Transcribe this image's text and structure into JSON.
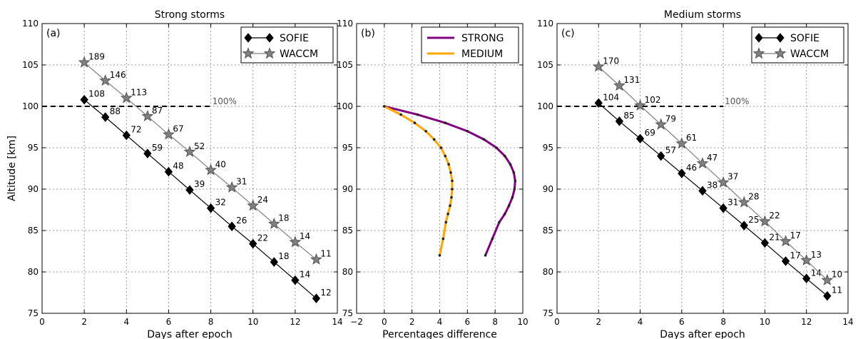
{
  "chart_data": [
    {
      "type": "line",
      "panel": "(a)",
      "title": "Strong storms",
      "xlabel": "Days after epoch",
      "ylabel": "Altitude [km]",
      "xlim": [
        0,
        14
      ],
      "ylim": [
        75,
        110
      ],
      "xticks": [
        "0",
        "2",
        "4",
        "6",
        "8",
        "10",
        "12",
        "14"
      ],
      "yticks": [
        "75",
        "80",
        "85",
        "90",
        "95",
        "100",
        "105",
        "110"
      ],
      "grid": true,
      "legend_position": "top-right",
      "reference_line": {
        "y": 100,
        "x_range": [
          0,
          8
        ],
        "label": "100%"
      },
      "series": [
        {
          "name": "SOFIE",
          "color": "#000000",
          "marker": "diamond",
          "x": [
            2,
            3,
            4,
            5,
            6,
            7,
            8,
            9,
            10,
            11,
            12,
            13
          ],
          "y": [
            100.8,
            98.7,
            96.5,
            94.3,
            92.1,
            89.9,
            87.7,
            85.5,
            83.4,
            81.2,
            79.0,
            76.8
          ],
          "labels": [
            "108",
            "88",
            "72",
            "59",
            "48",
            "39",
            "32",
            "26",
            "22",
            "18",
            "14",
            "12"
          ]
        },
        {
          "name": "WACCM",
          "color": "#808080",
          "marker": "star",
          "x": [
            2,
            3,
            4,
            5,
            6,
            7,
            8,
            9,
            10,
            11,
            12,
            13
          ],
          "y": [
            105.3,
            103.1,
            101.0,
            98.8,
            96.6,
            94.5,
            92.3,
            90.2,
            88.0,
            85.8,
            83.6,
            81.5
          ],
          "labels": [
            "189",
            "146",
            "113",
            "87",
            "67",
            "52",
            "40",
            "31",
            "24",
            "18",
            "14",
            "11"
          ]
        }
      ]
    },
    {
      "type": "line",
      "panel": "(b)",
      "title": "",
      "xlabel": "Percentages difference",
      "ylabel": "",
      "xlim": [
        -2,
        10
      ],
      "ylim": [
        75,
        110
      ],
      "xticks": [
        "−2",
        "0",
        "2",
        "4",
        "6",
        "8",
        "10"
      ],
      "yticks": [
        "75",
        "80",
        "85",
        "90",
        "95",
        "100",
        "105",
        "110"
      ],
      "grid": true,
      "legend_position": "top-right",
      "series": [
        {
          "name": "STRONG",
          "color": "#800080",
          "x": [
            0,
            2.4,
            4.4,
            6.0,
            7.2,
            8.1,
            8.7,
            9.1,
            9.35,
            9.45,
            9.4,
            9.25,
            9.0,
            8.7,
            8.3,
            7.8,
            7.3
          ],
          "y": [
            100,
            99,
            98,
            97,
            96,
            95,
            94,
            93,
            92,
            91,
            90,
            89,
            88,
            87,
            86,
            84,
            82
          ]
        },
        {
          "name": "MEDIUM",
          "color": "#FFA500",
          "x": [
            0,
            1.2,
            2.2,
            3.0,
            3.6,
            4.1,
            4.4,
            4.65,
            4.8,
            4.9,
            4.9,
            4.85,
            4.75,
            4.6,
            4.45,
            4.25,
            4.0
          ],
          "y": [
            100,
            99,
            98,
            97,
            96,
            95,
            94,
            93,
            92,
            91,
            90,
            89,
            88,
            87,
            86,
            84,
            82
          ]
        }
      ]
    },
    {
      "type": "line",
      "panel": "(c)",
      "title": "Medium storms",
      "xlabel": "Days after epoch",
      "ylabel": "",
      "xlim": [
        0,
        14
      ],
      "ylim": [
        75,
        110
      ],
      "xticks": [
        "0",
        "2",
        "4",
        "6",
        "8",
        "10",
        "12",
        "14"
      ],
      "yticks": [
        "75",
        "80",
        "85",
        "90",
        "95",
        "100",
        "105",
        "110"
      ],
      "grid": true,
      "legend_position": "top-right",
      "reference_line": {
        "y": 100,
        "x_range": [
          0,
          8
        ],
        "label": "100%"
      },
      "series": [
        {
          "name": "SOFIE",
          "color": "#000000",
          "marker": "diamond",
          "x": [
            2,
            3,
            4,
            5,
            6,
            7,
            8,
            9,
            10,
            11,
            12,
            13
          ],
          "y": [
            100.4,
            98.2,
            96.1,
            94.0,
            91.9,
            89.8,
            87.7,
            85.6,
            83.5,
            81.3,
            79.2,
            77.1
          ],
          "labels": [
            "104",
            "85",
            "69",
            "57",
            "46",
            "38",
            "31",
            "25",
            "21",
            "17",
            "14",
            "11"
          ]
        },
        {
          "name": "WACCM",
          "color": "#808080",
          "marker": "star",
          "x": [
            2,
            3,
            4,
            5,
            6,
            7,
            8,
            9,
            10,
            11,
            12,
            13
          ],
          "y": [
            104.8,
            102.5,
            100.1,
            97.8,
            95.5,
            93.1,
            90.8,
            88.4,
            86.1,
            83.7,
            81.4,
            79.0
          ],
          "labels": [
            "170",
            "131",
            "102",
            "79",
            "61",
            "47",
            "37",
            "28",
            "22",
            "17",
            "13",
            "10"
          ]
        }
      ]
    }
  ]
}
